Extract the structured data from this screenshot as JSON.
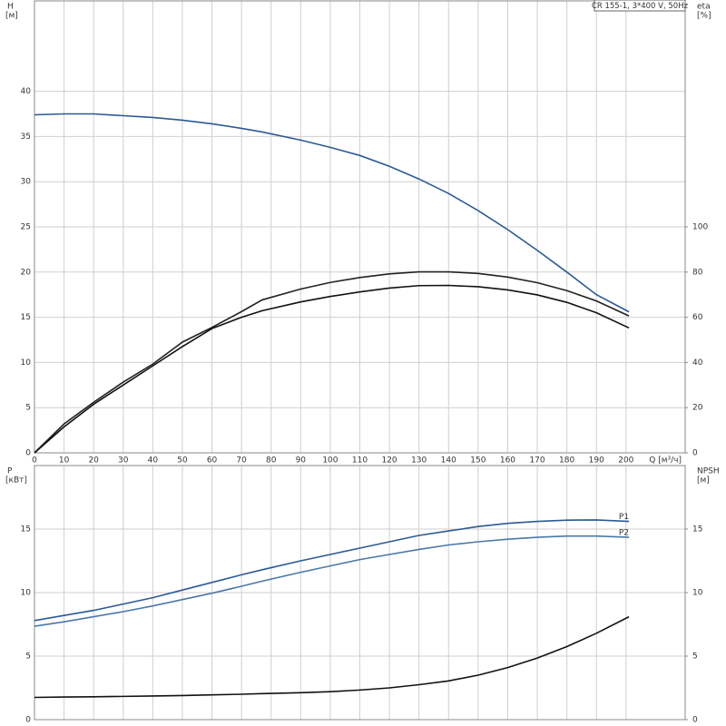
{
  "chart_data": [
    {
      "type": "line",
      "title": "CR 155-1, 3*400 V, 50Hz",
      "ylabel": "H",
      "yunit": "[м]",
      "y2label": "eta",
      "y2unit": "[%]",
      "xlabel": "Q [м³/ч]",
      "x": [
        0,
        10,
        20,
        30,
        40,
        50,
        60,
        70,
        77,
        90,
        100,
        110,
        120,
        130,
        140,
        150,
        160,
        170,
        180,
        190,
        201
      ],
      "xlim": [
        0,
        220
      ],
      "xticks": [
        0,
        10,
        20,
        30,
        40,
        50,
        60,
        70,
        80,
        90,
        100,
        110,
        120,
        130,
        140,
        150,
        160,
        170,
        180,
        190,
        200
      ],
      "ylim": [
        0,
        50
      ],
      "yticks": [
        0,
        5,
        10,
        15,
        20,
        25,
        30,
        35,
        40
      ],
      "y2lim": [
        0,
        200
      ],
      "y2ticks": [
        0,
        20,
        40,
        60,
        80,
        100
      ],
      "grid": true,
      "series": [
        {
          "color": "#2a5a96",
          "values": [
            37.4,
            37.5,
            37.5,
            37.3,
            37.1,
            36.8,
            36.4,
            35.9,
            35.5,
            34.6,
            33.8,
            32.9,
            31.7,
            30.3,
            28.7,
            26.8,
            24.7,
            22.4,
            20.0,
            17.5,
            15.6
          ]
        },
        {
          "color": "#222222",
          "axis": "y2",
          "values": [
            0,
            12.8,
            22.4,
            31.3,
            39.3,
            49,
            55.5,
            62.5,
            67.7,
            72.5,
            75.4,
            77.6,
            79.2,
            80.1,
            80.1,
            79.4,
            77.8,
            75.3,
            71.8,
            67.2,
            60.6
          ]
        },
        {
          "color": "#111111",
          "axis": "y2",
          "values": [
            0,
            11.5,
            21.5,
            30,
            38.5,
            47,
            55,
            60,
            62.9,
            66.8,
            69.2,
            71.2,
            72.9,
            74.0,
            74.1,
            73.5,
            72.1,
            69.9,
            66.6,
            62.0,
            55.3
          ]
        }
      ]
    },
    {
      "type": "line",
      "ylabel": "P",
      "yunit": "[кВт]",
      "y2label": "NPSH",
      "y2unit": "[м]",
      "x": [
        0,
        10,
        20,
        30,
        40,
        50,
        60,
        70,
        77,
        90,
        100,
        110,
        120,
        130,
        140,
        150,
        160,
        170,
        180,
        190,
        201
      ],
      "xlim": [
        0,
        220
      ],
      "ylim": [
        0,
        20
      ],
      "yticks": [
        0,
        5,
        10,
        15
      ],
      "y2lim": [
        0,
        20
      ],
      "y2ticks": [
        0,
        5,
        10,
        15
      ],
      "grid": true,
      "series": [
        {
          "name": "P1",
          "color": "#2a5a96",
          "values": [
            7.8,
            8.2,
            8.6,
            9.1,
            9.6,
            10.2,
            10.8,
            11.4,
            11.8,
            12.5,
            13.0,
            13.5,
            14.0,
            14.5,
            14.85,
            15.2,
            15.45,
            15.6,
            15.7,
            15.72,
            15.6
          ]
        },
        {
          "name": "P2",
          "color": "#4a78aa",
          "values": [
            7.35,
            7.7,
            8.1,
            8.5,
            8.95,
            9.45,
            9.95,
            10.5,
            10.9,
            11.6,
            12.1,
            12.6,
            13.0,
            13.4,
            13.75,
            14.0,
            14.2,
            14.35,
            14.45,
            14.45,
            14.35
          ]
        },
        {
          "color": "#111111",
          "axis": "y2",
          "values": [
            1.75,
            1.78,
            1.8,
            1.83,
            1.86,
            1.9,
            1.95,
            2.0,
            2.05,
            2.12,
            2.2,
            2.33,
            2.5,
            2.75,
            3.05,
            3.5,
            4.1,
            4.85,
            5.75,
            6.8,
            8.1
          ]
        }
      ]
    }
  ]
}
